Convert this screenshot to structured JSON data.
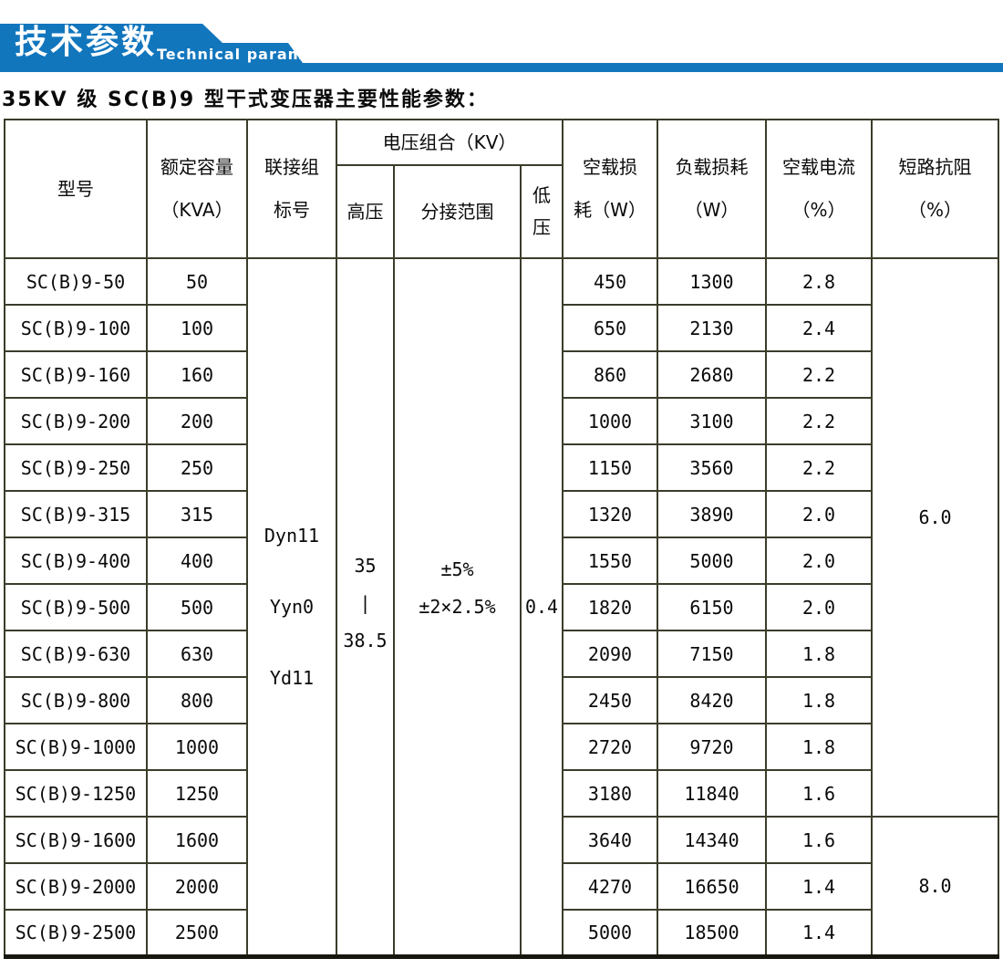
{
  "banner": {
    "title_cn": "技术参数",
    "title_en": "Technical parameter",
    "color": "#1276bd"
  },
  "page_title": "35KV 级 SC(B)9 型干式变压器主要性能参数：",
  "table": {
    "border_color": "#3c3c2b",
    "headers": {
      "model": "型号",
      "capacity_l1": "额定容量",
      "capacity_l2": "（KVA）",
      "vector_l1": "联接组",
      "vector_l2": "标号",
      "voltage_group": "电压组合（KV）",
      "hv": "高压",
      "tap": "分接范围",
      "lv_l1": "低",
      "lv_l2": "压",
      "no_load_loss_l1": "空载损",
      "no_load_loss_l2": "耗（W）",
      "load_loss_l1": "负载损耗",
      "load_loss_l2": "（W）",
      "no_load_current_l1": "空载电流",
      "no_load_current_l2": "（%）",
      "impedance_l1": "短路抗阻",
      "impedance_l2": "（%）"
    },
    "merged": {
      "vector_values": [
        "Dyn11",
        "Yyn0",
        "Yd11"
      ],
      "hv_lines": [
        "35",
        "|",
        "38.5"
      ],
      "tap_lines": [
        "±5%",
        "±2×2.5%"
      ],
      "lv_value": "0.4",
      "impedance_groups": [
        {
          "value": "6.0",
          "rows": 12
        },
        {
          "value": "8.0",
          "rows": 3
        }
      ]
    },
    "rows": [
      {
        "model": "SC(B)9-50",
        "kva": "50",
        "no_load_loss": "450",
        "load_loss": "1300",
        "no_load_current": "2.8"
      },
      {
        "model": "SC(B)9-100",
        "kva": "100",
        "no_load_loss": "650",
        "load_loss": "2130",
        "no_load_current": "2.4"
      },
      {
        "model": "SC(B)9-160",
        "kva": "160",
        "no_load_loss": "860",
        "load_loss": "2680",
        "no_load_current": "2.2"
      },
      {
        "model": "SC(B)9-200",
        "kva": "200",
        "no_load_loss": "1000",
        "load_loss": "3100",
        "no_load_current": "2.2"
      },
      {
        "model": "SC(B)9-250",
        "kva": "250",
        "no_load_loss": "1150",
        "load_loss": "3560",
        "no_load_current": "2.2"
      },
      {
        "model": "SC(B)9-315",
        "kva": "315",
        "no_load_loss": "1320",
        "load_loss": "3890",
        "no_load_current": "2.0"
      },
      {
        "model": "SC(B)9-400",
        "kva": "400",
        "no_load_loss": "1550",
        "load_loss": "5000",
        "no_load_current": "2.0"
      },
      {
        "model": "SC(B)9-500",
        "kva": "500",
        "no_load_loss": "1820",
        "load_loss": "6150",
        "no_load_current": "2.0"
      },
      {
        "model": "SC(B)9-630",
        "kva": "630",
        "no_load_loss": "2090",
        "load_loss": "7150",
        "no_load_current": "1.8"
      },
      {
        "model": "SC(B)9-800",
        "kva": "800",
        "no_load_loss": "2450",
        "load_loss": "8420",
        "no_load_current": "1.8"
      },
      {
        "model": "SC(B)9-1000",
        "kva": "1000",
        "no_load_loss": "2720",
        "load_loss": "9720",
        "no_load_current": "1.8"
      },
      {
        "model": "SC(B)9-1250",
        "kva": "1250",
        "no_load_loss": "3180",
        "load_loss": "11840",
        "no_load_current": "1.6"
      },
      {
        "model": "SC(B)9-1600",
        "kva": "1600",
        "no_load_loss": "3640",
        "load_loss": "14340",
        "no_load_current": "1.6"
      },
      {
        "model": "SC(B)9-2000",
        "kva": "2000",
        "no_load_loss": "4270",
        "load_loss": "16650",
        "no_load_current": "1.4"
      },
      {
        "model": "SC(B)9-2500",
        "kva": "2500",
        "no_load_loss": "5000",
        "load_loss": "18500",
        "no_load_current": "1.4"
      }
    ]
  }
}
